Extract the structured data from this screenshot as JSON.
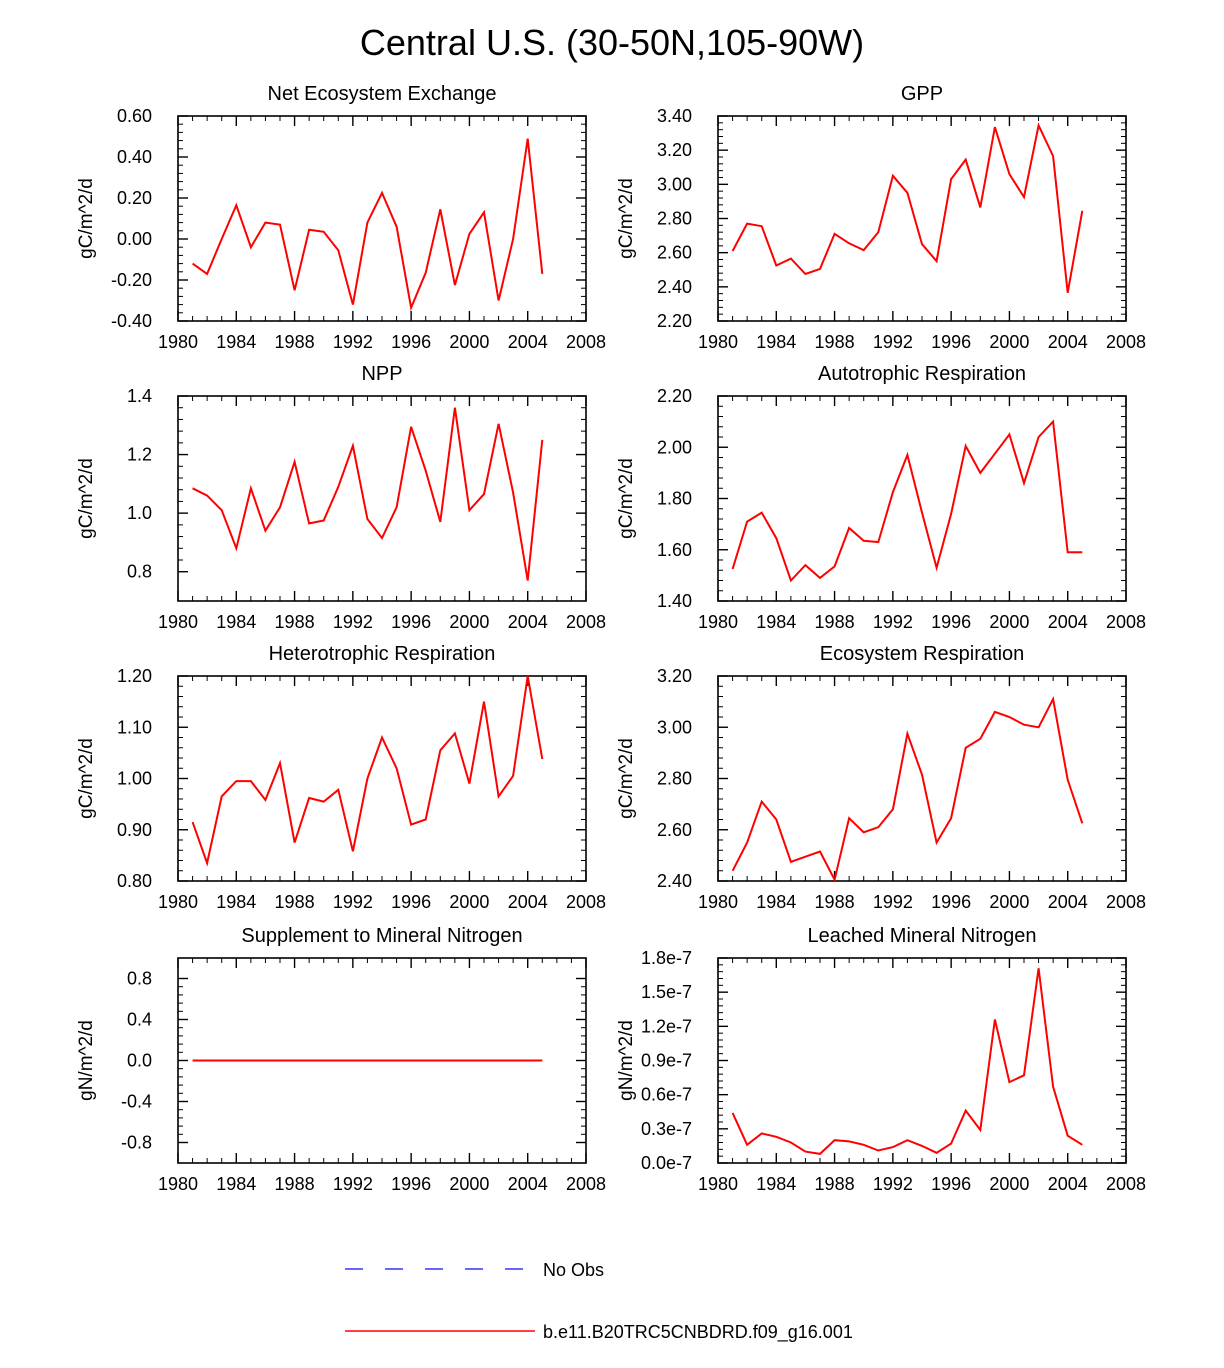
{
  "figure": {
    "title": "Central U.S. (30-50N,105-90W)",
    "series_color": "#ff0000",
    "obs_color": "#3333ff"
  },
  "legend": [
    {
      "label": "No Obs",
      "style": "dashed",
      "color": "#3333ff"
    },
    {
      "label": "b.e11.B20TRC5CNBDRD.f09_g16.001",
      "style": "solid",
      "color": "#ff0000"
    }
  ],
  "chart_data": [
    {
      "type": "line",
      "title": "Net Ecosystem Exchange",
      "ylabel": "gC/m^2/d",
      "xlim": [
        1980,
        2008
      ],
      "xticks": [
        1980,
        1984,
        1988,
        1992,
        1996,
        2000,
        2004,
        2008
      ],
      "xticklabels": [
        "1980",
        "1984",
        "1988",
        "1992",
        "1996",
        "2000",
        "2004",
        "2008"
      ],
      "ylim": [
        -0.4,
        0.6
      ],
      "yticks": [
        -0.4,
        -0.2,
        0.0,
        0.2,
        0.4,
        0.6
      ],
      "yticklabels": [
        "-0.40",
        "-0.20",
        "0.00",
        "0.20",
        "0.40",
        "0.60"
      ],
      "x": [
        1981,
        1982,
        1983,
        1984,
        1985,
        1986,
        1987,
        1988,
        1989,
        1990,
        1991,
        1992,
        1993,
        1994,
        1995,
        1996,
        1997,
        1998,
        1999,
        2000,
        2001,
        2002,
        2003,
        2004,
        2005
      ],
      "values": [
        -0.12,
        -0.17,
        0.0,
        0.165,
        -0.04,
        0.08,
        0.07,
        -0.25,
        0.045,
        0.035,
        -0.055,
        -0.32,
        0.08,
        0.225,
        0.06,
        -0.335,
        -0.165,
        0.145,
        -0.225,
        0.025,
        0.13,
        -0.3,
        0.0,
        0.49,
        -0.17
      ]
    },
    {
      "type": "line",
      "title": "GPP",
      "ylabel": "gC/m^2/d",
      "xlim": [
        1980,
        2008
      ],
      "xticks": [
        1980,
        1984,
        1988,
        1992,
        1996,
        2000,
        2004,
        2008
      ],
      "xticklabels": [
        "1980",
        "1984",
        "1988",
        "1992",
        "1996",
        "2000",
        "2004",
        "2008"
      ],
      "ylim": [
        2.2,
        3.4
      ],
      "yticks": [
        2.2,
        2.4,
        2.6,
        2.8,
        3.0,
        3.2,
        3.4
      ],
      "yticklabels": [
        "2.20",
        "2.40",
        "2.60",
        "2.80",
        "3.00",
        "3.20",
        "3.40"
      ],
      "x": [
        1981,
        1982,
        1983,
        1984,
        1985,
        1986,
        1987,
        1988,
        1989,
        1990,
        1991,
        1992,
        1993,
        1994,
        1995,
        1996,
        1997,
        1998,
        1999,
        2000,
        2001,
        2002,
        2003,
        2004,
        2005
      ],
      "values": [
        2.61,
        2.77,
        2.755,
        2.525,
        2.565,
        2.475,
        2.505,
        2.71,
        2.655,
        2.615,
        2.72,
        3.05,
        2.95,
        2.65,
        2.55,
        3.03,
        3.145,
        2.865,
        3.335,
        3.06,
        2.925,
        3.345,
        3.165,
        2.365,
        2.845
      ]
    },
    {
      "type": "line",
      "title": "NPP",
      "ylabel": "gC/m^2/d",
      "xlim": [
        1980,
        2008
      ],
      "xticks": [
        1980,
        1984,
        1988,
        1992,
        1996,
        2000,
        2004,
        2008
      ],
      "xticklabels": [
        "1980",
        "1984",
        "1988",
        "1992",
        "1996",
        "2000",
        "2004",
        "2008"
      ],
      "ylim": [
        0.7,
        1.4
      ],
      "yticks": [
        0.8,
        1.0,
        1.2,
        1.4
      ],
      "yticklabels": [
        "0.8",
        "1.0",
        "1.2",
        "1.4"
      ],
      "x": [
        1981,
        1982,
        1983,
        1984,
        1985,
        1986,
        1987,
        1988,
        1989,
        1990,
        1991,
        1992,
        1993,
        1994,
        1995,
        1996,
        1997,
        1998,
        1999,
        2000,
        2001,
        2002,
        2003,
        2004,
        2005
      ],
      "values": [
        1.085,
        1.06,
        1.01,
        0.88,
        1.085,
        0.94,
        1.02,
        1.175,
        0.965,
        0.975,
        1.09,
        1.23,
        0.98,
        0.915,
        1.02,
        1.295,
        1.145,
        0.97,
        1.36,
        1.01,
        1.065,
        1.305,
        1.07,
        0.77,
        1.25
      ]
    },
    {
      "type": "line",
      "title": "Autotrophic Respiration",
      "ylabel": "gC/m^2/d",
      "xlim": [
        1980,
        2008
      ],
      "xticks": [
        1980,
        1984,
        1988,
        1992,
        1996,
        2000,
        2004,
        2008
      ],
      "xticklabels": [
        "1980",
        "1984",
        "1988",
        "1992",
        "1996",
        "2000",
        "2004",
        "2008"
      ],
      "ylim": [
        1.4,
        2.2
      ],
      "yticks": [
        1.4,
        1.6,
        1.8,
        2.0,
        2.2
      ],
      "yticklabels": [
        "1.40",
        "1.60",
        "1.80",
        "2.00",
        "2.20"
      ],
      "x": [
        1981,
        1982,
        1983,
        1984,
        1985,
        1986,
        1987,
        1988,
        1989,
        1990,
        1991,
        1992,
        1993,
        1994,
        1995,
        1996,
        1997,
        1998,
        1999,
        2000,
        2001,
        2002,
        2003,
        2004,
        2005
      ],
      "values": [
        1.525,
        1.71,
        1.745,
        1.645,
        1.48,
        1.54,
        1.49,
        1.535,
        1.685,
        1.635,
        1.63,
        1.825,
        1.97,
        1.745,
        1.53,
        1.74,
        2.005,
        1.9,
        1.975,
        2.05,
        1.86,
        2.04,
        2.1,
        1.59,
        1.59
      ]
    },
    {
      "type": "line",
      "title": "Heterotrophic Respiration",
      "ylabel": "gC/m^2/d",
      "xlim": [
        1980,
        2008
      ],
      "xticks": [
        1980,
        1984,
        1988,
        1992,
        1996,
        2000,
        2004,
        2008
      ],
      "xticklabels": [
        "1980",
        "1984",
        "1988",
        "1992",
        "1996",
        "2000",
        "2004",
        "2008"
      ],
      "ylim": [
        0.8,
        1.2
      ],
      "yticks": [
        0.8,
        0.9,
        1.0,
        1.1,
        1.2
      ],
      "yticklabels": [
        "0.80",
        "0.90",
        "1.00",
        "1.10",
        "1.20"
      ],
      "x": [
        1981,
        1982,
        1983,
        1984,
        1985,
        1986,
        1987,
        1988,
        1989,
        1990,
        1991,
        1992,
        1993,
        1994,
        1995,
        1996,
        1997,
        1998,
        1999,
        2000,
        2001,
        2002,
        2003,
        2004,
        2005
      ],
      "values": [
        0.915,
        0.835,
        0.965,
        0.995,
        0.995,
        0.958,
        1.03,
        0.875,
        0.962,
        0.955,
        0.978,
        0.858,
        1.0,
        1.08,
        1.02,
        0.91,
        0.92,
        1.055,
        1.088,
        0.99,
        1.15,
        0.965,
        1.005,
        1.2,
        1.038
      ]
    },
    {
      "type": "line",
      "title": "Ecosystem Respiration",
      "ylabel": "gC/m^2/d",
      "xlim": [
        1980,
        2008
      ],
      "xticks": [
        1980,
        1984,
        1988,
        1992,
        1996,
        2000,
        2004,
        2008
      ],
      "xticklabels": [
        "1980",
        "1984",
        "1988",
        "1992",
        "1996",
        "2000",
        "2004",
        "2008"
      ],
      "ylim": [
        2.4,
        3.2
      ],
      "yticks": [
        2.4,
        2.6,
        2.8,
        3.0,
        3.2
      ],
      "yticklabels": [
        "2.40",
        "2.60",
        "2.80",
        "3.00",
        "3.20"
      ],
      "x": [
        1981,
        1982,
        1983,
        1984,
        1985,
        1986,
        1987,
        1988,
        1989,
        1990,
        1991,
        1992,
        1993,
        1994,
        1995,
        1996,
        1997,
        1998,
        1999,
        2000,
        2001,
        2002,
        2003,
        2004,
        2005
      ],
      "values": [
        2.44,
        2.55,
        2.71,
        2.64,
        2.475,
        2.495,
        2.515,
        2.405,
        2.645,
        2.59,
        2.61,
        2.68,
        2.975,
        2.815,
        2.55,
        2.645,
        2.92,
        2.955,
        3.06,
        3.04,
        3.01,
        3.0,
        3.11,
        2.795,
        2.625
      ]
    },
    {
      "type": "line",
      "title": "Supplement to Mineral Nitrogen",
      "ylabel": "gN/m^2/d",
      "xlim": [
        1980,
        2008
      ],
      "xticks": [
        1980,
        1984,
        1988,
        1992,
        1996,
        2000,
        2004,
        2008
      ],
      "xticklabels": [
        "1980",
        "1984",
        "1988",
        "1992",
        "1996",
        "2000",
        "2004",
        "2008"
      ],
      "ylim": [
        -1.0,
        1.0
      ],
      "yticks": [
        -0.8,
        -0.4,
        0.0,
        0.4,
        0.8
      ],
      "yticklabels": [
        "-0.8",
        "-0.4",
        "0.0",
        "0.4",
        "0.8"
      ],
      "x": [
        1981,
        1982,
        1983,
        1984,
        1985,
        1986,
        1987,
        1988,
        1989,
        1990,
        1991,
        1992,
        1993,
        1994,
        1995,
        1996,
        1997,
        1998,
        1999,
        2000,
        2001,
        2002,
        2003,
        2004,
        2005
      ],
      "values": [
        0,
        0,
        0,
        0,
        0,
        0,
        0,
        0,
        0,
        0,
        0,
        0,
        0,
        0,
        0,
        0,
        0,
        0,
        0,
        0,
        0,
        0,
        0,
        0,
        0
      ]
    },
    {
      "type": "line",
      "title": "Leached Mineral Nitrogen",
      "ylabel": "gN/m^2/d",
      "xlim": [
        1980,
        2008
      ],
      "xticks": [
        1980,
        1984,
        1988,
        1992,
        1996,
        2000,
        2004,
        2008
      ],
      "xticklabels": [
        "1980",
        "1984",
        "1988",
        "1992",
        "1996",
        "2000",
        "2004",
        "2008"
      ],
      "ylim": [
        0,
        1.8e-07
      ],
      "yticks": [
        0,
        3e-08,
        6e-08,
        9e-08,
        1.2e-07,
        1.5e-07,
        1.8e-07
      ],
      "yticklabels": [
        "0.0e-7",
        "0.3e-7",
        "0.6e-7",
        "0.9e-7",
        "1.2e-7",
        "1.5e-7",
        "1.8e-7"
      ],
      "x": [
        1981,
        1982,
        1983,
        1984,
        1985,
        1986,
        1987,
        1988,
        1989,
        1990,
        1991,
        1992,
        1993,
        1994,
        1995,
        1996,
        1997,
        1998,
        1999,
        2000,
        2001,
        2002,
        2003,
        2004,
        2005
      ],
      "values": [
        4.4e-08,
        1.6e-08,
        2.6e-08,
        2.3e-08,
        1.8e-08,
        1e-08,
        8e-09,
        2e-08,
        1.9e-08,
        1.6e-08,
        1.1e-08,
        1.4e-08,
        2e-08,
        1.5e-08,
        9e-09,
        1.7e-08,
        4.6e-08,
        2.9e-08,
        1.26e-07,
        7.1e-08,
        7.7e-08,
        1.71e-07,
        6.7e-08,
        2.4e-08,
        1.6e-08
      ]
    }
  ]
}
